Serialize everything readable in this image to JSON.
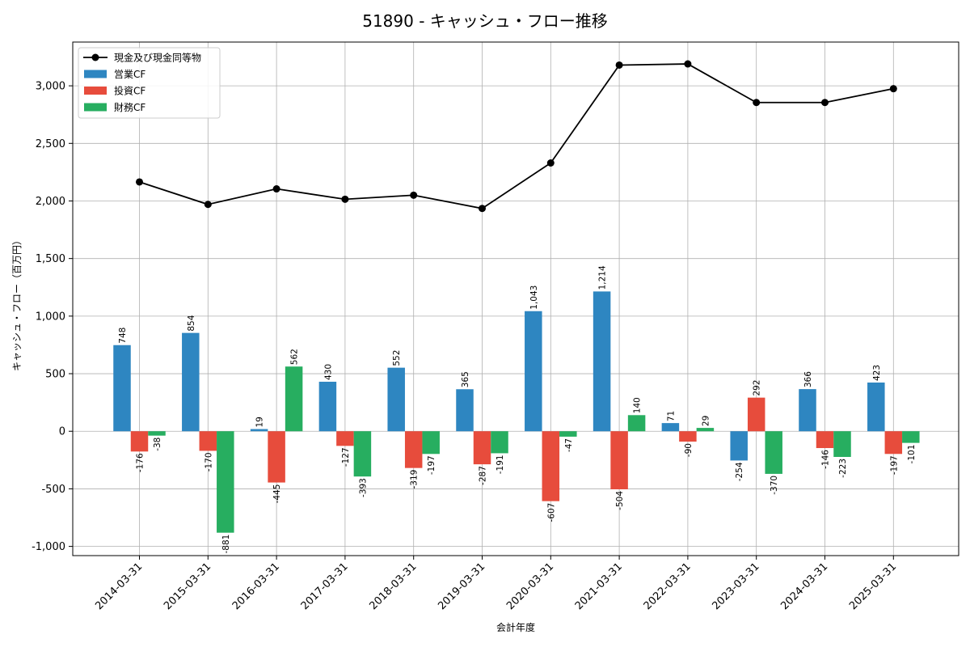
{
  "chart_data": {
    "type": "bar",
    "title": "51890 - キャッシュ・フロー推移",
    "xlabel": "会計年度",
    "ylabel": "キャッシュ・フロー（百万円）",
    "ylim": [
      -1080,
      3380
    ],
    "yticks": [
      -1000,
      -500,
      0,
      500,
      1000,
      1500,
      2000,
      2500,
      3000
    ],
    "ytick_labels": [
      "-1,000",
      "-500",
      "0",
      "500",
      "1,000",
      "1,500",
      "2,000",
      "2,500",
      "3,000"
    ],
    "grid": true,
    "legend_position": "top-left",
    "categories": [
      "2014-03-31",
      "2015-03-31",
      "2016-03-31",
      "2017-03-31",
      "2018-03-31",
      "2019-03-31",
      "2020-03-31",
      "2021-03-31",
      "2022-03-31",
      "2023-03-31",
      "2024-03-31",
      "2025-03-31"
    ],
    "series": [
      {
        "name": "営業CF",
        "type": "bar",
        "color": "#2e86c1",
        "values": [
          748,
          854,
          19,
          430,
          552,
          365,
          1043,
          1214,
          71,
          -254,
          366,
          423
        ],
        "labels": [
          "748",
          "854",
          "19",
          "430",
          "552",
          "365",
          "1,043",
          "1,214",
          "71",
          "-254",
          "366",
          "423"
        ]
      },
      {
        "name": "投資CF",
        "type": "bar",
        "color": "#e74c3c",
        "values": [
          -176,
          -170,
          -445,
          -127,
          -319,
          -287,
          -607,
          -504,
          -90,
          292,
          -146,
          -197
        ],
        "labels": [
          "-176",
          "-170",
          "-445",
          "-127",
          "-319",
          "-287",
          "-607",
          "-504",
          "-90",
          "292",
          "-146",
          "-197"
        ]
      },
      {
        "name": "財務CF",
        "type": "bar",
        "color": "#27ae60",
        "values": [
          -38,
          -881,
          562,
          -393,
          -197,
          -191,
          -47,
          140,
          29,
          -370,
          -223,
          -101
        ],
        "labels": [
          "-38",
          "-881",
          "562",
          "-393",
          "-197",
          "-191",
          "-47",
          "140",
          "29",
          "-370",
          "-223",
          "-101"
        ]
      },
      {
        "name": "現金及び現金同等物",
        "type": "line",
        "color": "#000000",
        "values": [
          2165,
          1970,
          2105,
          2015,
          2050,
          1935,
          2330,
          3180,
          3190,
          2855,
          2855,
          2975
        ]
      }
    ]
  }
}
